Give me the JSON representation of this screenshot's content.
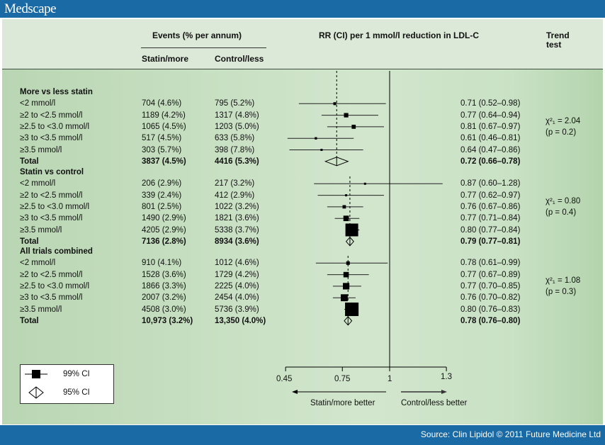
{
  "brand": {
    "logo": "Medscape"
  },
  "footer": {
    "source": "Source: Clin Lipidol © 2011 Future Medicine Ltd"
  },
  "colors": {
    "bar": "#1a6aa6",
    "panel": "#c9e1c4",
    "header": "#dce8d8"
  },
  "headers": {
    "events": "Events (% per annum)",
    "statin": "Statin/more",
    "control": "Control/less",
    "rr": "RR (CI) per 1 mmol/l reduction in LDL-C",
    "trend": "Trend",
    "trend2": "test"
  },
  "chart_data": {
    "type": "forest",
    "x_ticks": [
      "0.45",
      "0.75",
      "1",
      "1.3"
    ],
    "xlim": [
      0.45,
      1.3
    ],
    "x_scale": "linear",
    "reference_line": 1,
    "direction_left": "Statin/more better",
    "direction_right": "Control/less better",
    "legend": [
      {
        "symbol": "square",
        "label": "99% CI"
      },
      {
        "symbol": "diamond",
        "label": "95% CI"
      }
    ],
    "groups": [
      {
        "title": "More vs less statin",
        "trend_stat": "χ²₁ = 2.04",
        "trend_p": "(p = 0.2)",
        "rows": [
          {
            "label": "<2 mmol/l",
            "statin": "704 (4.6%)",
            "control": "795 (5.2%)",
            "rr_text": "0.71 (0.52–0.98)",
            "rr": 0.71,
            "lo": 0.52,
            "hi": 0.98,
            "n": 1499
          },
          {
            "label": "≥2 to <2.5 mmol/l",
            "statin": "1189 (4.2%)",
            "control": "1317 (4.8%)",
            "rr_text": "0.77 (0.64–0.94)",
            "rr": 0.77,
            "lo": 0.64,
            "hi": 0.94,
            "n": 2506
          },
          {
            "label": "≥2.5 to <3.0 mmol/l",
            "statin": "1065 (4.5%)",
            "control": "1203 (5.0%)",
            "rr_text": "0.81 (0.67–0.97)",
            "rr": 0.81,
            "lo": 0.67,
            "hi": 0.97,
            "n": 2268
          },
          {
            "label": "≥3 to <3.5 mmol/l",
            "statin": "517 (4.5%)",
            "control": "633 (5.8%)",
            "rr_text": "0.61 (0.46–0.81)",
            "rr": 0.61,
            "lo": 0.46,
            "hi": 0.81,
            "n": 1150
          },
          {
            "label": "≥3.5 mmol/l",
            "statin": "303 (5.7%)",
            "control": "398 (7.8%)",
            "rr_text": "0.64 (0.47–0.86)",
            "rr": 0.64,
            "lo": 0.47,
            "hi": 0.86,
            "n": 701
          }
        ],
        "total": {
          "label": "Total",
          "statin": "3837 (4.5%)",
          "control": "4416 (5.3%)",
          "rr_text": "0.72 (0.66–0.78)",
          "rr": 0.72,
          "lo": 0.66,
          "hi": 0.78
        }
      },
      {
        "title": "Statin vs control",
        "trend_stat": "χ²₁ = 0.80",
        "trend_p": "(p = 0.4)",
        "rows": [
          {
            "label": "<2 mmol/l",
            "statin": "206 (2.9%)",
            "control": "217 (3.2%)",
            "rr_text": "0.87 (0.60–1.28)",
            "rr": 0.87,
            "lo": 0.6,
            "hi": 1.28,
            "n": 423
          },
          {
            "label": "≥2 to <2.5 mmol/l",
            "statin": "339 (2.4%)",
            "control": "412 (2.9%)",
            "rr_text": "0.77 (0.62–0.97)",
            "rr": 0.77,
            "lo": 0.62,
            "hi": 0.97,
            "n": 751
          },
          {
            "label": "≥2.5 to <3.0 mmol/l",
            "statin": "801 (2.5%)",
            "control": "1022 (3.2%)",
            "rr_text": "0.76 (0.67–0.86)",
            "rr": 0.76,
            "lo": 0.67,
            "hi": 0.86,
            "n": 1823
          },
          {
            "label": "≥3 to <3.5 mmol/l",
            "statin": "1490 (2.9%)",
            "control": "1821 (3.6%)",
            "rr_text": "0.77 (0.71–0.84)",
            "rr": 0.77,
            "lo": 0.71,
            "hi": 0.84,
            "n": 3311
          },
          {
            "label": "≥3.5 mmol/l",
            "statin": "4205 (2.9%)",
            "control": "5338 (3.7%)",
            "rr_text": "0.80 (0.77–0.84)",
            "rr": 0.8,
            "lo": 0.77,
            "hi": 0.84,
            "n": 9543
          }
        ],
        "total": {
          "label": "Total",
          "statin": "7136 (2.8%)",
          "control": "8934 (3.6%)",
          "rr_text": "0.79 (0.77–0.81)",
          "rr": 0.79,
          "lo": 0.77,
          "hi": 0.81
        }
      },
      {
        "title": "All trials combined",
        "trend_stat": "χ²₁ = 1.08",
        "trend_p": "(p = 0.3)",
        "rows": [
          {
            "label": "<2 mmol/l",
            "statin": "910 (4.1%)",
            "control": "1012 (4.6%)",
            "rr_text": "0.78 (0.61–0.99)",
            "rr": 0.78,
            "lo": 0.61,
            "hi": 0.99,
            "n": 1922
          },
          {
            "label": "≥2 to <2.5 mmol/l",
            "statin": "1528 (3.6%)",
            "control": "1729 (4.2%)",
            "rr_text": "0.77 (0.67–0.89)",
            "rr": 0.77,
            "lo": 0.67,
            "hi": 0.89,
            "n": 3257
          },
          {
            "label": "≥2.5 to <3.0 mmol/l",
            "statin": "1866 (3.3%)",
            "control": "2225 (4.0%)",
            "rr_text": "0.77 (0.70–0.85)",
            "rr": 0.77,
            "lo": 0.7,
            "hi": 0.85,
            "n": 4091
          },
          {
            "label": "≥3 to <3.5 mmol/l",
            "statin": "2007 (3.2%)",
            "control": "2454 (4.0%)",
            "rr_text": "0.76 (0.70–0.82)",
            "rr": 0.76,
            "lo": 0.7,
            "hi": 0.82,
            "n": 4461
          },
          {
            "label": "≥3.5 mmol/l",
            "statin": "4508 (3.0%)",
            "control": "5736 (3.9%)",
            "rr_text": "0.80 (0.76–0.83)",
            "rr": 0.8,
            "lo": 0.76,
            "hi": 0.83,
            "n": 10244
          }
        ],
        "total": {
          "label": "Total",
          "statin": "10,973 (3.2%)",
          "control": "13,350 (4.0%)",
          "rr_text": "0.78 (0.76–0.80)",
          "rr": 0.78,
          "lo": 0.76,
          "hi": 0.8
        }
      }
    ]
  }
}
